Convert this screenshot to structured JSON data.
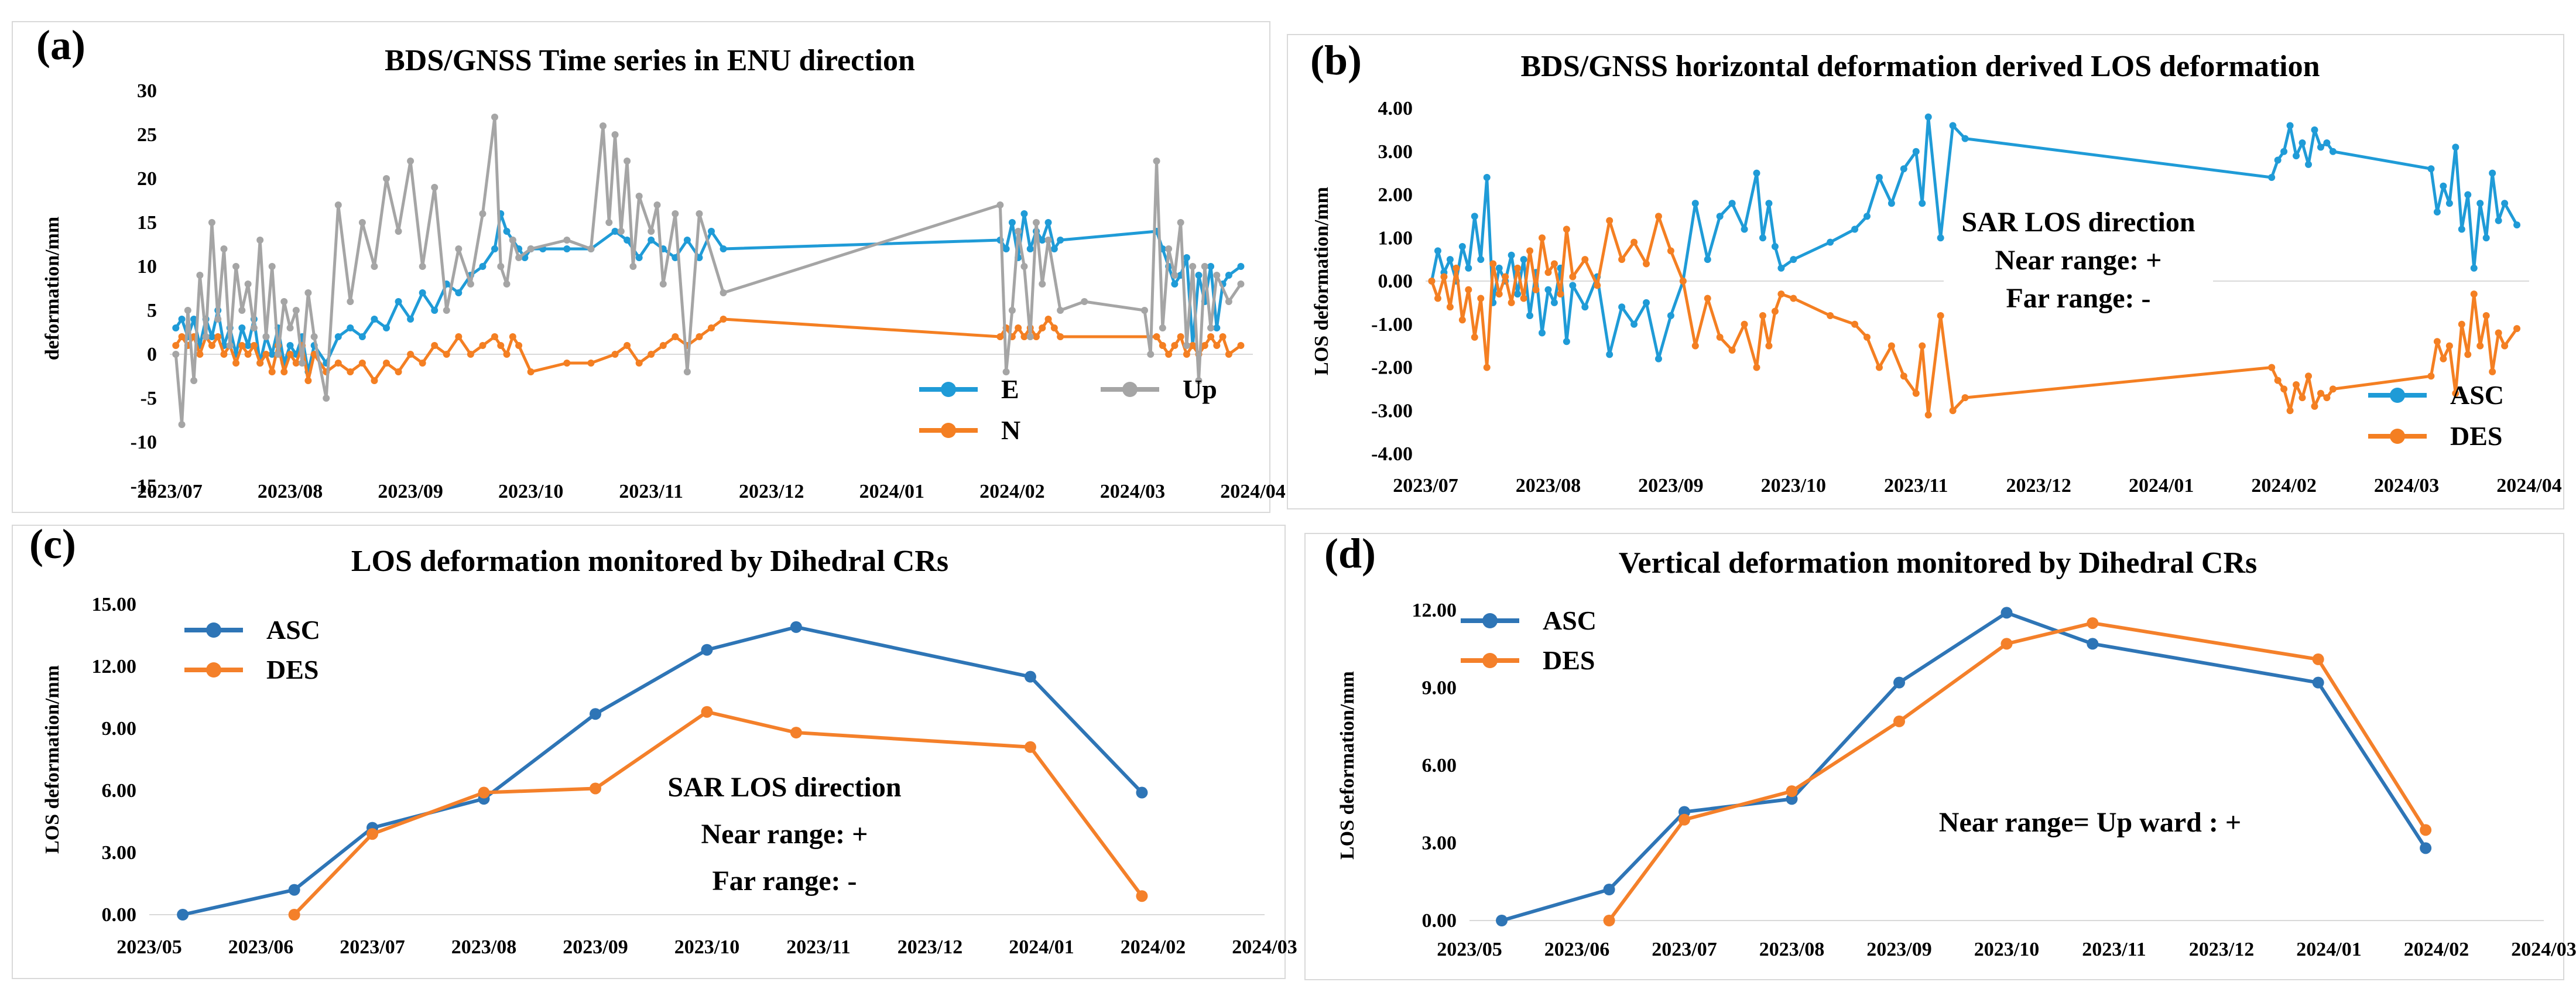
{
  "panels": [
    {
      "label": "(a)"
    },
    {
      "label": "(b)"
    },
    {
      "label": "(c)"
    },
    {
      "label": "(d)"
    }
  ],
  "colors": {
    "blue": "#1f9bd7",
    "orange": "#f47f22",
    "gray": "#a5a5a5",
    "blue_dark": "#2e75b6",
    "orange_c": "#f4802a"
  },
  "chart_data": [
    {
      "id": "a",
      "type": "line",
      "title": "BDS/GNSS  Time series  in ENU direction",
      "xlabel": "",
      "ylabel": "deformation/mm",
      "ylim": [
        -15,
        30
      ],
      "yticks": [
        -15,
        -10,
        -5,
        0,
        5,
        10,
        15,
        20,
        25,
        30
      ],
      "xlim": [
        0,
        9
      ],
      "xticks": [
        "2023/07",
        "2023/08",
        "2023/09",
        "2023/10",
        "2023/11",
        "2023/12",
        "2024/01",
        "2024/02",
        "2024/03",
        "2024/04"
      ],
      "series": [
        {
          "name": "E",
          "color": "#1f9bd7",
          "x": [
            0.05,
            0.1,
            0.15,
            0.2,
            0.25,
            0.3,
            0.35,
            0.4,
            0.45,
            0.5,
            0.55,
            0.6,
            0.65,
            0.7,
            0.75,
            0.8,
            0.85,
            0.9,
            0.95,
            1.0,
            1.05,
            1.1,
            1.15,
            1.2,
            1.3,
            1.4,
            1.5,
            1.6,
            1.7,
            1.8,
            1.9,
            2.0,
            2.1,
            2.2,
            2.3,
            2.4,
            2.5,
            2.6,
            2.7,
            2.75,
            2.8,
            2.85,
            2.9,
            2.95,
            3.0,
            3.1,
            3.3,
            3.5,
            3.7,
            3.8,
            3.9,
            4.0,
            4.1,
            4.2,
            4.3,
            4.4,
            4.5,
            4.6,
            6.9,
            6.95,
            7.0,
            7.05,
            7.1,
            7.15,
            7.2,
            7.25,
            7.3,
            7.35,
            7.4,
            8.2,
            8.25,
            8.3,
            8.35,
            8.4,
            8.45,
            8.5,
            8.55,
            8.6,
            8.65,
            8.7,
            8.75,
            8.8,
            8.9
          ],
          "y": [
            3,
            4,
            2,
            4,
            1,
            4,
            2,
            5,
            1,
            3,
            0,
            3,
            1,
            4,
            -1,
            2,
            0,
            3,
            -1,
            1,
            0,
            2,
            -2,
            1,
            -1,
            2,
            3,
            2,
            4,
            3,
            6,
            4,
            7,
            5,
            8,
            7,
            9,
            10,
            12,
            16,
            14,
            13,
            12,
            11,
            12,
            12,
            12,
            12,
            14,
            13,
            11,
            13,
            12,
            11,
            13,
            11,
            14,
            12,
            13,
            12,
            15,
            11,
            16,
            12,
            14,
            13,
            15,
            12,
            13,
            14,
            12,
            10,
            8,
            9,
            11,
            1,
            9,
            6,
            10,
            3,
            8,
            9,
            10
          ]
        },
        {
          "name": "N",
          "color": "#f47f22",
          "x": [
            0.05,
            0.1,
            0.15,
            0.2,
            0.25,
            0.3,
            0.35,
            0.4,
            0.45,
            0.5,
            0.55,
            0.6,
            0.65,
            0.7,
            0.75,
            0.8,
            0.85,
            0.9,
            0.95,
            1.0,
            1.05,
            1.1,
            1.15,
            1.2,
            1.3,
            1.4,
            1.5,
            1.6,
            1.7,
            1.8,
            1.9,
            2.0,
            2.1,
            2.2,
            2.3,
            2.4,
            2.5,
            2.6,
            2.7,
            2.75,
            2.8,
            2.85,
            2.9,
            3.0,
            3.3,
            3.5,
            3.7,
            3.8,
            3.9,
            4.0,
            4.1,
            4.2,
            4.3,
            4.4,
            4.5,
            4.6,
            6.9,
            6.95,
            7.0,
            7.05,
            7.1,
            7.15,
            7.2,
            7.25,
            7.3,
            7.35,
            7.4,
            8.2,
            8.25,
            8.3,
            8.35,
            8.4,
            8.45,
            8.5,
            8.55,
            8.6,
            8.65,
            8.7,
            8.75,
            8.8,
            8.9
          ],
          "y": [
            1,
            2,
            1,
            2,
            0,
            2,
            1,
            2,
            0,
            1,
            -1,
            1,
            0,
            1,
            -1,
            0,
            -2,
            1,
            -2,
            0,
            -1,
            1,
            -3,
            0,
            -2,
            -1,
            -2,
            -1,
            -3,
            -1,
            -2,
            0,
            -1,
            1,
            0,
            2,
            0,
            1,
            2,
            1,
            0,
            2,
            1,
            -2,
            -1,
            -1,
            0,
            1,
            -1,
            0,
            1,
            2,
            1,
            2,
            3,
            4,
            2,
            3,
            2,
            3,
            2,
            3,
            2,
            3,
            4,
            3,
            2,
            2,
            1,
            0,
            1,
            2,
            0,
            1,
            0,
            1,
            2,
            1,
            2,
            0,
            1
          ]
        },
        {
          "name": "Up",
          "color": "#a5a5a5",
          "x": [
            0.05,
            0.1,
            0.15,
            0.2,
            0.25,
            0.3,
            0.35,
            0.4,
            0.45,
            0.5,
            0.55,
            0.6,
            0.65,
            0.7,
            0.75,
            0.8,
            0.85,
            0.9,
            0.95,
            1.0,
            1.05,
            1.1,
            1.15,
            1.2,
            1.3,
            1.4,
            1.5,
            1.6,
            1.7,
            1.8,
            1.9,
            2.0,
            2.1,
            2.2,
            2.3,
            2.4,
            2.5,
            2.6,
            2.7,
            2.75,
            2.8,
            2.85,
            2.9,
            3.0,
            3.3,
            3.5,
            3.6,
            3.65,
            3.7,
            3.75,
            3.8,
            3.85,
            3.9,
            4.0,
            4.05,
            4.1,
            4.2,
            4.3,
            4.4,
            4.6,
            6.9,
            6.95,
            7.0,
            7.05,
            7.1,
            7.15,
            7.2,
            7.25,
            7.3,
            7.4,
            7.6,
            8.1,
            8.15,
            8.2,
            8.25,
            8.3,
            8.35,
            8.4,
            8.45,
            8.5,
            8.55,
            8.6,
            8.65,
            8.7,
            8.8,
            8.9
          ],
          "y": [
            0,
            -8,
            5,
            -3,
            9,
            2,
            15,
            4,
            12,
            1,
            10,
            5,
            8,
            3,
            13,
            2,
            10,
            0,
            6,
            3,
            5,
            -1,
            7,
            2,
            -5,
            17,
            6,
            15,
            10,
            20,
            14,
            22,
            10,
            19,
            5,
            12,
            8,
            16,
            27,
            10,
            8,
            13,
            11,
            12,
            13,
            12,
            26,
            15,
            25,
            14,
            22,
            10,
            18,
            14,
            17,
            8,
            16,
            -2,
            16,
            7,
            17,
            -2,
            5,
            14,
            10,
            2,
            15,
            8,
            13,
            5,
            6,
            5,
            0,
            22,
            3,
            12,
            9,
            15,
            1,
            10,
            -3,
            10,
            3,
            9,
            6,
            8
          ]
        }
      ],
      "legend": [
        "E",
        "Up",
        "N"
      ]
    },
    {
      "id": "b",
      "type": "line",
      "title": "BDS/GNSS horizontal deformation derived LOS deformation",
      "xlabel": "",
      "ylabel": "LOS deformation/mm",
      "ylim": [
        -4,
        4
      ],
      "yticks": [
        "-4.00",
        "-3.00",
        "-2.00",
        "-1.00",
        "0.00",
        "1.00",
        "2.00",
        "3.00",
        "4.00"
      ],
      "xlim": [
        0,
        9
      ],
      "xticks": [
        "2023/07",
        "2023/08",
        "2023/09",
        "2023/10",
        "2023/11",
        "2023/12",
        "2024/01",
        "2024/02",
        "2024/03",
        "2024/04"
      ],
      "series": [
        {
          "name": "ASC",
          "color": "#1f9bd7",
          "x": [
            0.05,
            0.1,
            0.15,
            0.2,
            0.25,
            0.3,
            0.35,
            0.4,
            0.45,
            0.5,
            0.55,
            0.6,
            0.65,
            0.7,
            0.75,
            0.8,
            0.85,
            0.9,
            0.95,
            1.0,
            1.05,
            1.1,
            1.15,
            1.2,
            1.3,
            1.4,
            1.5,
            1.6,
            1.7,
            1.8,
            1.9,
            2.0,
            2.1,
            2.2,
            2.3,
            2.4,
            2.5,
            2.6,
            2.7,
            2.75,
            2.8,
            2.85,
            2.9,
            3.0,
            3.3,
            3.5,
            3.6,
            3.7,
            3.8,
            3.9,
            4.0,
            4.05,
            4.1,
            4.2,
            4.3,
            4.4,
            6.9,
            6.95,
            7.0,
            7.05,
            7.1,
            7.15,
            7.2,
            7.25,
            7.3,
            7.35,
            7.4,
            8.2,
            8.25,
            8.3,
            8.35,
            8.4,
            8.45,
            8.5,
            8.55,
            8.6,
            8.65,
            8.7,
            8.75,
            8.8,
            8.9
          ],
          "y": [
            0.0,
            0.7,
            0.2,
            0.5,
            0.0,
            0.8,
            0.3,
            1.5,
            0.5,
            2.4,
            -0.5,
            0.3,
            0.0,
            0.6,
            -0.3,
            0.5,
            -0.8,
            0.2,
            -1.2,
            -0.2,
            -0.5,
            0.3,
            -1.4,
            -0.1,
            -0.6,
            0.1,
            -1.7,
            -0.6,
            -1.0,
            -0.5,
            -1.8,
            -0.8,
            0.0,
            1.8,
            0.5,
            1.5,
            1.8,
            1.2,
            2.5,
            1.0,
            1.8,
            0.8,
            0.3,
            0.5,
            0.9,
            1.2,
            1.5,
            2.4,
            1.8,
            2.6,
            3.0,
            1.8,
            3.8,
            1.0,
            3.6,
            3.3,
            2.4,
            2.8,
            3.0,
            3.6,
            2.9,
            3.2,
            2.7,
            3.5,
            3.1,
            3.2,
            3.0,
            2.6,
            1.6,
            2.2,
            1.8,
            3.1,
            1.2,
            2.0,
            0.3,
            1.8,
            1.0,
            2.5,
            1.4,
            1.8,
            1.3
          ]
        },
        {
          "name": "DES",
          "color": "#f47f22",
          "x": [
            0.05,
            0.1,
            0.15,
            0.2,
            0.25,
            0.3,
            0.35,
            0.4,
            0.45,
            0.5,
            0.55,
            0.6,
            0.65,
            0.7,
            0.75,
            0.8,
            0.85,
            0.9,
            0.95,
            1.0,
            1.05,
            1.1,
            1.15,
            1.2,
            1.3,
            1.4,
            1.5,
            1.6,
            1.7,
            1.8,
            1.9,
            2.0,
            2.1,
            2.2,
            2.3,
            2.4,
            2.5,
            2.6,
            2.7,
            2.75,
            2.8,
            2.85,
            2.9,
            3.0,
            3.3,
            3.5,
            3.6,
            3.7,
            3.8,
            3.9,
            4.0,
            4.05,
            4.1,
            4.2,
            4.3,
            4.4,
            6.9,
            6.95,
            7.0,
            7.05,
            7.1,
            7.15,
            7.2,
            7.25,
            7.3,
            7.35,
            7.4,
            8.2,
            8.25,
            8.3,
            8.35,
            8.4,
            8.45,
            8.5,
            8.55,
            8.6,
            8.65,
            8.7,
            8.75,
            8.8,
            8.9
          ],
          "y": [
            0.0,
            -0.4,
            0.1,
            -0.6,
            0.3,
            -0.9,
            -0.2,
            -1.3,
            -0.4,
            -2.0,
            0.4,
            -0.3,
            0.1,
            -0.5,
            0.3,
            -0.4,
            0.7,
            -0.2,
            1.0,
            0.2,
            0.4,
            -0.3,
            1.2,
            0.1,
            0.5,
            -0.1,
            1.4,
            0.5,
            0.9,
            0.4,
            1.5,
            0.7,
            0.0,
            -1.5,
            -0.4,
            -1.3,
            -1.6,
            -1.0,
            -2.0,
            -0.8,
            -1.5,
            -0.7,
            -0.3,
            -0.4,
            -0.8,
            -1.0,
            -1.3,
            -2.0,
            -1.5,
            -2.2,
            -2.6,
            -1.5,
            -3.1,
            -0.8,
            -3.0,
            -2.7,
            -2.0,
            -2.3,
            -2.5,
            -3.0,
            -2.4,
            -2.7,
            -2.2,
            -2.9,
            -2.6,
            -2.7,
            -2.5,
            -2.2,
            -1.4,
            -1.8,
            -1.5,
            -2.6,
            -1.0,
            -1.7,
            -0.3,
            -1.5,
            -0.8,
            -2.1,
            -1.2,
            -1.5,
            -1.1
          ]
        }
      ],
      "legend": [
        "ASC",
        "DES"
      ],
      "annotation": [
        "SAR LOS direction",
        "Near range: +",
        "Far range: -"
      ]
    },
    {
      "id": "c",
      "type": "line",
      "title": "LOS deformation monitored by Dihedral CRs",
      "xlabel": "",
      "ylabel": "LOS deformation/mm",
      "ylim": [
        0,
        15
      ],
      "yticks": [
        "0.00",
        "3.00",
        "6.00",
        "9.00",
        "12.00",
        "15.00"
      ],
      "xlim": [
        0,
        10
      ],
      "xticks": [
        "2023/05",
        "2023/06",
        "2023/07",
        "2023/08",
        "2023/09",
        "2023/10",
        "2023/11",
        "2023/12",
        "2024/01",
        "2024/02",
        "2024/03"
      ],
      "series": [
        {
          "name": "ASC",
          "color": "#2e75b6",
          "x": [
            0.3,
            1.3,
            2.0,
            3.0,
            4.0,
            5.0,
            5.8,
            7.9,
            8.9
          ],
          "y": [
            0.0,
            1.2,
            4.2,
            5.6,
            9.7,
            12.8,
            13.9,
            11.5,
            5.9
          ]
        },
        {
          "name": "DES",
          "color": "#f4802a",
          "x": [
            1.3,
            2.0,
            3.0,
            4.0,
            5.0,
            5.8,
            7.9,
            8.9
          ],
          "y": [
            0.0,
            3.9,
            5.9,
            6.1,
            9.8,
            8.8,
            8.1,
            0.9
          ]
        }
      ],
      "legend": [
        "ASC",
        "DES"
      ],
      "annotation": [
        "SAR LOS direction",
        "Near range: +",
        "Far range: -"
      ]
    },
    {
      "id": "d",
      "type": "line",
      "title": "Vertical deformation monitored by Dihedral CRs",
      "xlabel": "",
      "ylabel": "LOS deformation/mm",
      "ylim": [
        0,
        12
      ],
      "yticks": [
        "0.00",
        "3.00",
        "6.00",
        "9.00",
        "12.00"
      ],
      "xlim": [
        0,
        10
      ],
      "xticks": [
        "2023/05",
        "2023/06",
        "2023/07",
        "2023/08",
        "2023/09",
        "2023/10",
        "2023/11",
        "2023/12",
        "2024/01",
        "2024/02",
        "2024/03"
      ],
      "series": [
        {
          "name": "ASC",
          "color": "#2e75b6",
          "x": [
            0.3,
            1.3,
            2.0,
            3.0,
            4.0,
            5.0,
            5.8,
            7.9,
            8.9
          ],
          "y": [
            0.0,
            1.2,
            4.2,
            4.7,
            9.2,
            11.9,
            10.7,
            9.2,
            2.8
          ]
        },
        {
          "name": "DES",
          "color": "#f4802a",
          "x": [
            1.3,
            2.0,
            3.0,
            4.0,
            5.0,
            5.8,
            7.9,
            8.9
          ],
          "y": [
            0.0,
            3.9,
            5.0,
            7.7,
            10.7,
            11.5,
            10.1,
            3.5
          ]
        }
      ],
      "legend": [
        "ASC",
        "DES"
      ],
      "annotation": [
        "Near range= Up ward :  +"
      ]
    }
  ]
}
